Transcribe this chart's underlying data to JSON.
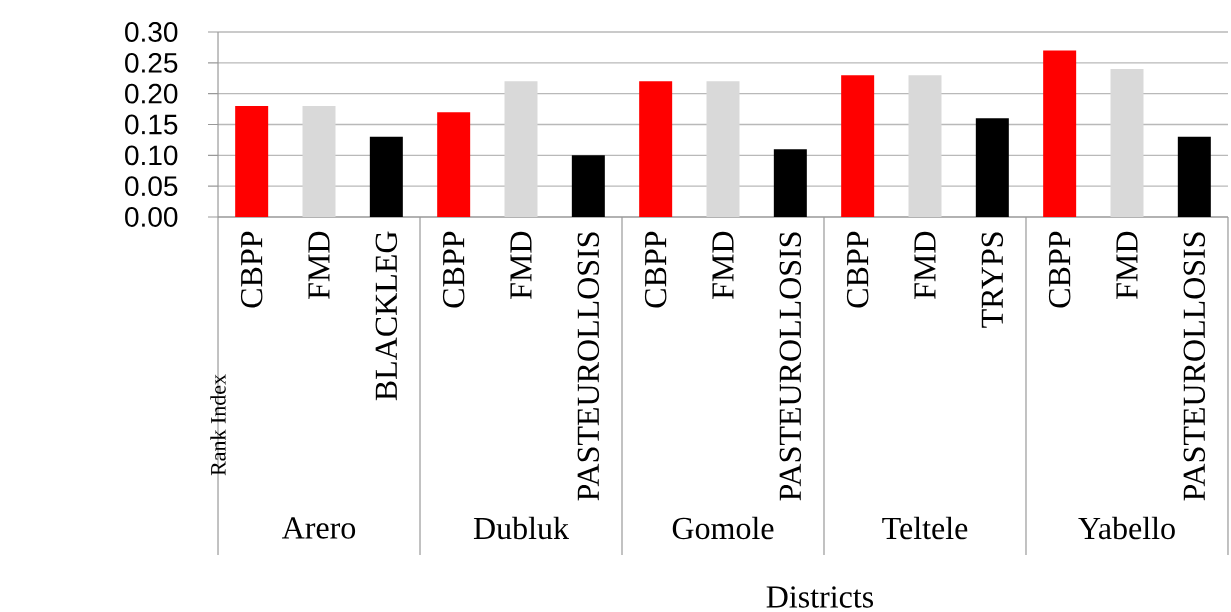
{
  "chart_data": {
    "type": "bar",
    "ylabel": "Rank Index",
    "xlabel": "Districts",
    "categories": [
      "CBPP",
      "FMD",
      "BLACKLEG",
      "CBPP",
      "FMD",
      "PASTEUROLLOSIS",
      "CBPP",
      "FMD",
      "PASTEUROLLOSIS",
      "CBPP",
      "FMD",
      "TRYPS",
      "CBPP",
      "FMD",
      "PASTEUROLLOSIS"
    ],
    "values": [
      0.18,
      0.18,
      0.13,
      0.17,
      0.22,
      0.1,
      0.22,
      0.22,
      0.11,
      0.23,
      0.23,
      0.16,
      0.27,
      0.24,
      0.13
    ],
    "colors": [
      "#ff0000",
      "#d9d9d9",
      "#000000",
      "#ff0000",
      "#d9d9d9",
      "#000000",
      "#ff0000",
      "#d9d9d9",
      "#000000",
      "#ff0000",
      "#d9d9d9",
      "#000000",
      "#ff0000",
      "#d9d9d9",
      "#000000"
    ],
    "ylim": [
      0,
      0.3
    ],
    "yticks": [
      {
        "value": 0,
        "label": "0.00"
      },
      {
        "value": 0.05,
        "label": "0.05"
      },
      {
        "value": 0.1,
        "label": "0.10"
      },
      {
        "value": 0.15,
        "label": "0.15"
      },
      {
        "value": 0.2,
        "label": "0.20"
      },
      {
        "value": 0.25,
        "label": "0.25"
      },
      {
        "value": 0.3,
        "label": "0.30"
      }
    ],
    "grid": "y",
    "annotations": [
      "Arero",
      "Dubluk",
      "Gomole",
      "Teltele",
      "Yabello"
    ]
  }
}
